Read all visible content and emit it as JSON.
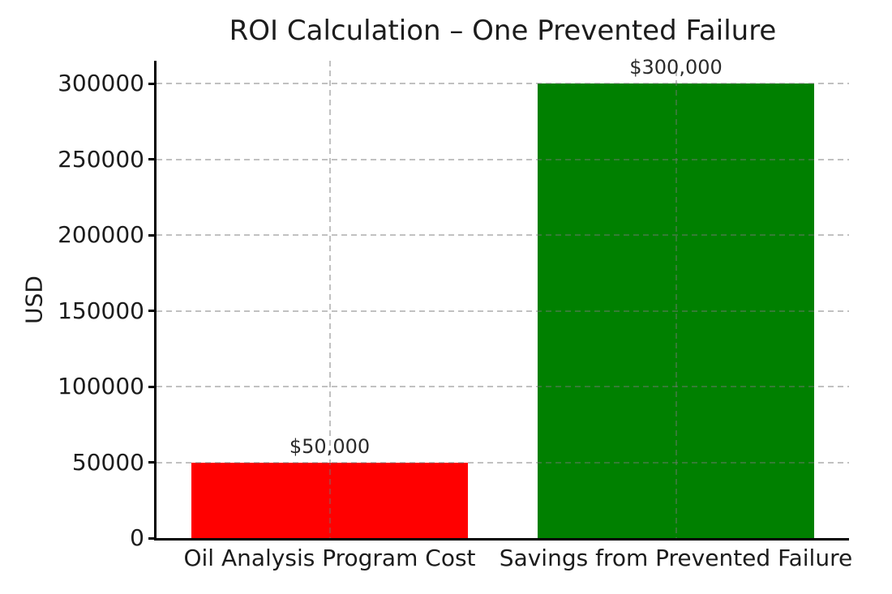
{
  "chart_data": {
    "type": "bar",
    "title": "ROI Calculation – One Prevented Failure",
    "xlabel": "",
    "ylabel": "USD",
    "categories": [
      "Oil Analysis Program Cost",
      "Savings from Prevented Failure"
    ],
    "values": [
      50000,
      300000
    ],
    "value_labels": [
      "$50,000",
      "$300,000"
    ],
    "bar_colors": [
      "#ff0000",
      "#008000"
    ],
    "yticks": [
      0,
      50000,
      100000,
      150000,
      200000,
      250000,
      300000
    ],
    "ylim": [
      0,
      315000
    ],
    "bar_width_fraction": 0.8,
    "grid": {
      "linestyle": "dashed",
      "axes": "both",
      "color_on_white": "#c6c6c6",
      "drawn_over_bars": true
    },
    "legend": null,
    "background_color": "#ffffff",
    "text_color": "#1c1c1c",
    "spine_color": "#000000",
    "spines_visible": [
      "left",
      "bottom"
    ]
  }
}
